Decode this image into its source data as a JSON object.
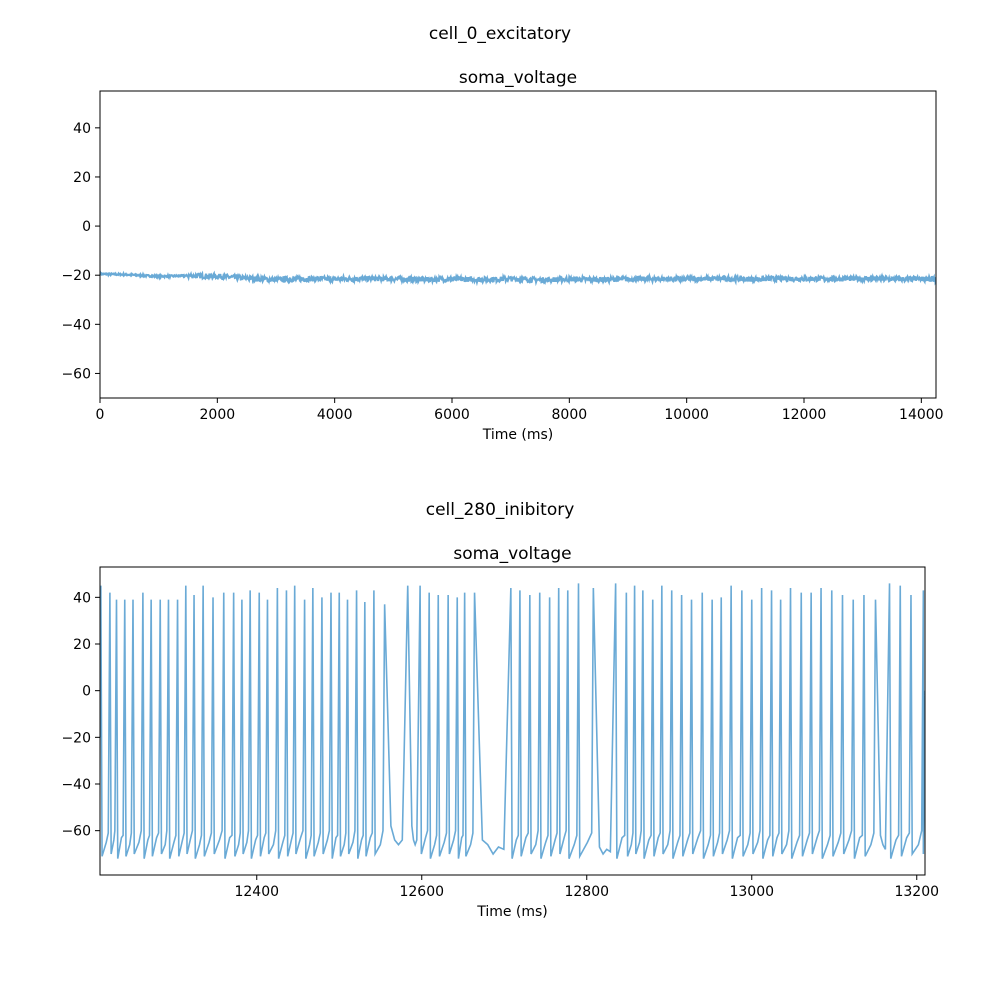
{
  "figures": [
    {
      "suptitle": "cell_0_excitatory"
    },
    {
      "suptitle": "cell_280_inibitory"
    }
  ],
  "chart_data": [
    {
      "type": "line",
      "title": "soma_voltage",
      "xlabel": "Time (ms)",
      "ylabel": "",
      "xlim": [
        0,
        14250
      ],
      "ylim": [
        -70,
        55
      ],
      "xticks": [
        0,
        2000,
        4000,
        6000,
        8000,
        10000,
        12000,
        14000
      ],
      "yticks": [
        -60,
        -40,
        -20,
        0,
        20,
        40
      ],
      "color": "#6aaad6",
      "grid": false,
      "series": [
        {
          "x": [
            0,
            500,
            1000,
            1500,
            2000,
            2500,
            3000,
            3500,
            4000,
            4500,
            5000,
            5500,
            6000,
            6500,
            7000,
            7500,
            8000,
            8500,
            9000,
            9500,
            10000,
            10500,
            11000,
            11500,
            12000,
            12500,
            13000,
            13500,
            14000,
            14250
          ],
          "y": [
            -19.5,
            -19.8,
            -20.5,
            -20.2,
            -20.4,
            -21.3,
            -21.8,
            -21.5,
            -21.6,
            -21.4,
            -21.5,
            -21.8,
            -21.6,
            -21.8,
            -21.5,
            -21.9,
            -21.6,
            -21.8,
            -21.6,
            -21.5,
            -21.6,
            -21.4,
            -21.6,
            -21.5,
            -21.4,
            -21.5,
            -21.4,
            -21.6,
            -21.5,
            -21.8
          ]
        }
      ]
    },
    {
      "type": "line",
      "title": "soma_voltage",
      "xlabel": "Time (ms)",
      "ylabel": "",
      "xlim": [
        12210,
        13210
      ],
      "ylim": [
        -79,
        53
      ],
      "xticks": [
        12400,
        12600,
        12800,
        13000,
        13200
      ],
      "yticks": [
        -60,
        -40,
        -20,
        0,
        20,
        40
      ],
      "color": "#6aaad6",
      "grid": false,
      "spike_trough_mV": -70,
      "series": [
        {
          "spike_times": [
            12211,
            12222,
            12230,
            12240,
            12250,
            12262,
            12272,
            12283,
            12293,
            12304,
            12314,
            12324,
            12335,
            12347,
            12360,
            12372,
            12382,
            12392,
            12403,
            12413,
            12425,
            12436,
            12446,
            12458,
            12468,
            12479,
            12490,
            12500,
            12510,
            12521,
            12531,
            12542,
            12555,
            12583,
            12598,
            12609,
            12620,
            12632,
            12643,
            12652,
            12664,
            12708,
            12719,
            12731,
            12743,
            12755,
            12766,
            12777,
            12790,
            12808,
            12835,
            12848,
            12858,
            12868,
            12880,
            12891,
            12903,
            12915,
            12927,
            12940,
            12952,
            12963,
            12975,
            12988,
            13000,
            13012,
            13024,
            13035,
            13047,
            13060,
            13072,
            13084,
            13097,
            13110,
            13123,
            13136,
            13150,
            13167,
            13180,
            13193,
            13208
          ],
          "spike_peaks": [
            45,
            42,
            39,
            39,
            39,
            42,
            39,
            39,
            39,
            39,
            45,
            41,
            45,
            40,
            42,
            42,
            39,
            43,
            42,
            39,
            44,
            43,
            45,
            39,
            44,
            40,
            42,
            42,
            39,
            43,
            38,
            43,
            37,
            45,
            45,
            42,
            41,
            41,
            40,
            42,
            42,
            44,
            43,
            41,
            42,
            40,
            44,
            43,
            46,
            44,
            46,
            42,
            45,
            43,
            39,
            45,
            43,
            41,
            39,
            42,
            39,
            40,
            45,
            43,
            39,
            44,
            43,
            39,
            44,
            42,
            42,
            44,
            43,
            41,
            39,
            41,
            39,
            46,
            45,
            41,
            43
          ],
          "pause_troughs": [
            {
              "from": 12560,
              "to": 12580,
              "y": [
                -58,
                -64,
                -66,
                -64
              ]
            },
            {
              "from": 12665,
              "to": 12706,
              "y": [
                -64,
                -66,
                -70,
                -67,
                -68
              ]
            },
            {
              "from": 12810,
              "to": 12833,
              "y": [
                -67,
                -70,
                -68,
                -69
              ]
            },
            {
              "from": 13150,
              "to": 13165,
              "y": [
                -62,
                -66,
                -68
              ]
            }
          ]
        }
      ]
    }
  ]
}
